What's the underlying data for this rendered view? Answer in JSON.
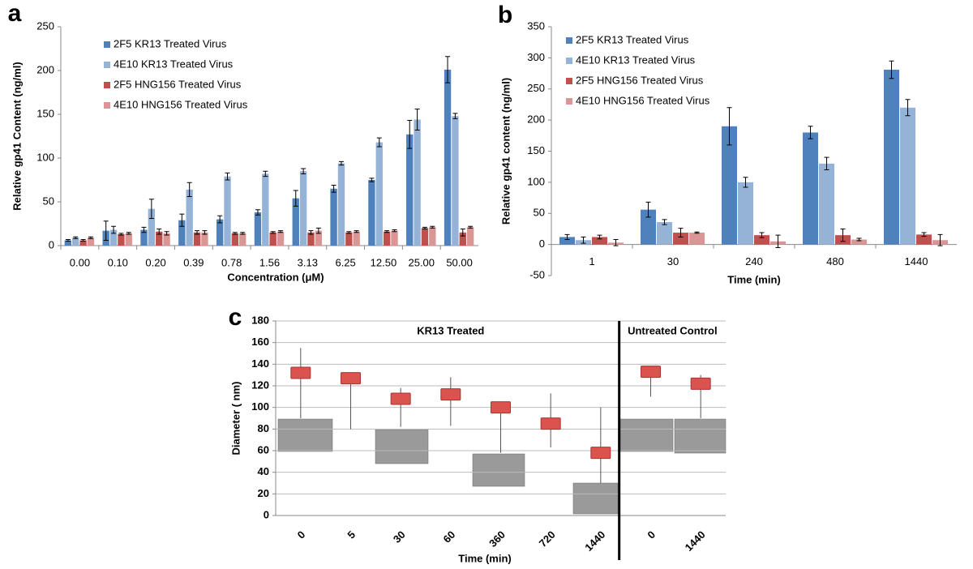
{
  "chart_data": [
    {
      "type": "bar",
      "panel": "a",
      "x_label": "Concentration (μM)",
      "y_label": "Relative gp41 Content (ng/ml)",
      "categories": [
        "0.00",
        "0.10",
        "0.20",
        "0.39",
        "0.78",
        "1.56",
        "3.13",
        "6.25",
        "12.50",
        "25.00",
        "50.00"
      ],
      "ylim": [
        0,
        250
      ],
      "yticks": [
        0,
        50,
        100,
        150,
        200,
        250
      ],
      "grid": false,
      "legend": "upper left",
      "series": [
        {
          "name": "2F5 KR13 Treated Virus",
          "color": "#4f81bd",
          "values": [
            6,
            17,
            18,
            29,
            30,
            38,
            54,
            65,
            75,
            127,
            201
          ],
          "errors": [
            1,
            11,
            3,
            7,
            4,
            3,
            9,
            4,
            2,
            16,
            15
          ]
        },
        {
          "name": "4E10 KR13 Treated Virus",
          "color": "#95b3d7",
          "values": [
            9,
            18,
            42,
            64,
            79,
            82,
            85,
            94,
            118,
            144,
            148
          ],
          "errors": [
            1,
            4,
            11,
            8,
            4,
            3,
            3,
            2,
            5,
            12,
            3
          ]
        },
        {
          "name": "2F5 HNG156 Treated Virus",
          "color": "#c0504d",
          "values": [
            6,
            13,
            16,
            15,
            14,
            15,
            15,
            15,
            16,
            20,
            15
          ],
          "errors": [
            1,
            1,
            3,
            2,
            1,
            1,
            2,
            1,
            1,
            1,
            4
          ]
        },
        {
          "name": "4E10 HNG156 Treated Virus",
          "color": "#d99694",
          "values": [
            9,
            14,
            14,
            15,
            14,
            16,
            17,
            16,
            17,
            21,
            21
          ],
          "errors": [
            1,
            1,
            2,
            2,
            1,
            1,
            3,
            1,
            1,
            1,
            1
          ]
        }
      ]
    },
    {
      "type": "bar",
      "panel": "b",
      "x_label": "Time (min)",
      "y_label": "Relative gp41 content (ng/ml)",
      "categories": [
        "1",
        "30",
        "240",
        "480",
        "1440"
      ],
      "ylim": [
        -50,
        350
      ],
      "yticks": [
        -50,
        0,
        50,
        100,
        150,
        200,
        250,
        300,
        350
      ],
      "grid": false,
      "legend": "upper left",
      "series": [
        {
          "name": "2F5 KR13 Treated Virus",
          "color": "#4f81bd",
          "values": [
            12,
            56,
            190,
            180,
            281
          ],
          "errors": [
            4,
            12,
            30,
            10,
            14
          ]
        },
        {
          "name": "4E10 KR13 Treated Virus",
          "color": "#95b3d7",
          "values": [
            7,
            36,
            100,
            130,
            220
          ],
          "errors": [
            5,
            4,
            8,
            10,
            13
          ]
        },
        {
          "name": "2F5 HNG156 Treated Virus",
          "color": "#c0504d",
          "values": [
            12,
            19,
            15,
            15,
            16
          ],
          "errors": [
            3,
            7,
            4,
            10,
            3
          ]
        },
        {
          "name": "4E10 HNG156 Treated Virus",
          "color": "#d99694",
          "values": [
            3,
            19,
            5,
            8,
            7
          ],
          "errors": [
            5,
            1,
            10,
            2,
            9
          ]
        }
      ]
    },
    {
      "type": "range",
      "panel": "c",
      "x_label": "Time (min)",
      "y_label": "Diameter ( nm)",
      "ylim": [
        0,
        180
      ],
      "yticks": [
        0,
        20,
        40,
        60,
        80,
        100,
        120,
        140,
        160,
        180
      ],
      "grid": true,
      "color": "#d9534f",
      "groups": [
        {
          "name": "KR13 Treated",
          "categories": [
            "0",
            "5",
            "30",
            "60",
            "360",
            "720",
            "1440"
          ],
          "values": [
            132,
            127,
            108,
            112,
            100,
            85,
            58
          ],
          "low": [
            90,
            80,
            82,
            83,
            58,
            63,
            30
          ],
          "high": [
            155,
            130,
            118,
            128,
            105,
            113,
            100
          ]
        },
        {
          "name": "Untreated Control",
          "categories": [
            "0",
            "1440"
          ],
          "values": [
            133,
            122
          ],
          "low": [
            110,
            90
          ],
          "high": [
            137,
            130
          ]
        }
      ]
    }
  ]
}
